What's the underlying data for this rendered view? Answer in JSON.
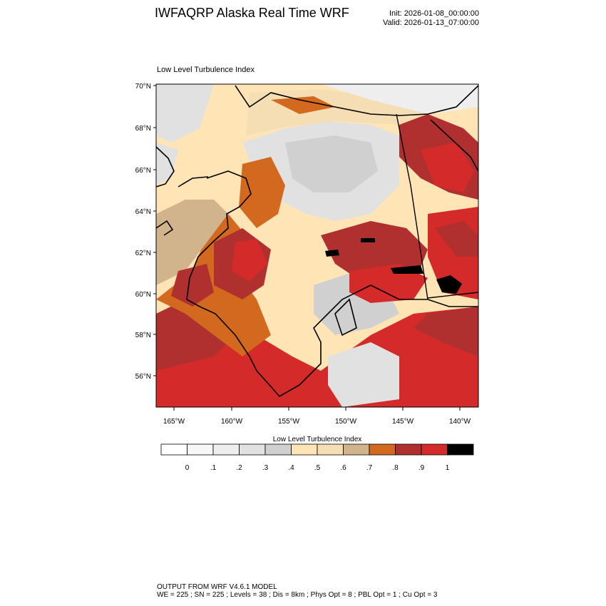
{
  "header": {
    "title": "IWFAQRP Alaska Real Time WRF",
    "init": "Init: 2026-01-08_00:00:00",
    "valid": "Valid: 2026-01-13_07:00:00"
  },
  "plot": {
    "title": "Low Level Turbulence Index",
    "lat_labels": [
      "70°N",
      "68°N",
      "66°N",
      "64°N",
      "62°N",
      "60°N",
      "58°N",
      "56°N"
    ],
    "lon_labels": [
      "165°W",
      "160°W",
      "155°W",
      "150°W",
      "145°W",
      "140°W"
    ]
  },
  "colorbar": {
    "title": "Low Level Turbulence Index",
    "colors": [
      "#ffffff",
      "#f7f7f7",
      "#eeeeee",
      "#e1e1e1",
      "#d0d0d0",
      "#ffe4b5",
      "#f5deb3",
      "#d2b48c",
      "#d2691e",
      "#b03030",
      "#d42a2a",
      "#000000"
    ],
    "labels": [
      "0",
      ".1",
      ".2",
      ".3",
      ".4",
      ".5",
      ".6",
      ".7",
      ".8",
      ".9",
      "1"
    ]
  },
  "footer": {
    "line1": "OUTPUT FROM WRF V4.6.1 MODEL",
    "line2": "WE = 225 ; SN = 225 ; Levels = 38 ; Dis = 8km ; Phys Opt = 8 ; PBL Opt = 1 ; Cu Opt = 3"
  }
}
